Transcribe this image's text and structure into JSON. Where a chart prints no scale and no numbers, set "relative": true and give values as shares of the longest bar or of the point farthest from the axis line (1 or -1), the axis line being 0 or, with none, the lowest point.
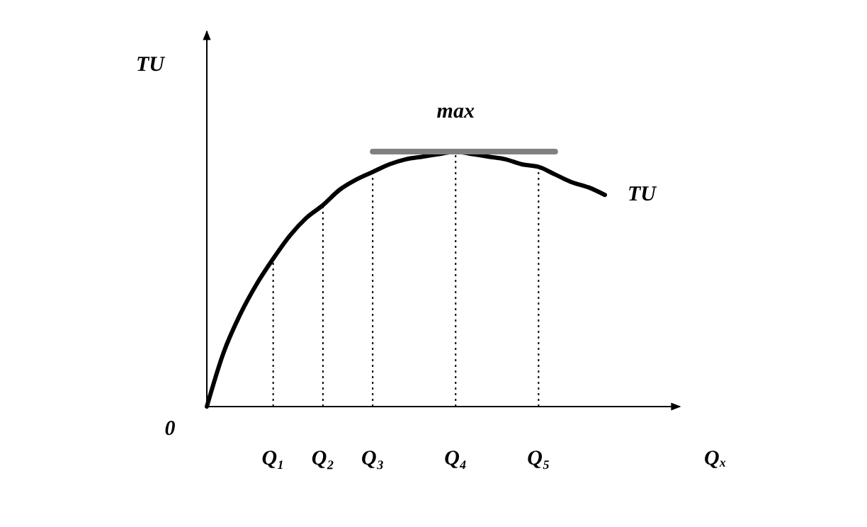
{
  "chart_data": {
    "type": "line",
    "relative": true,
    "ylabel": "TU",
    "xlabel": "Qₓ",
    "categories": [
      null,
      null,
      null,
      null,
      "Q₁",
      null,
      null,
      "Q₂",
      null,
      null,
      "Q₃",
      null,
      null,
      null,
      null,
      "Q₄",
      null,
      null,
      null,
      null,
      "Q₅",
      null,
      null,
      null,
      null
    ],
    "series": [
      {
        "name": "TU",
        "color": "#000000",
        "values": [
          0,
          0.21,
          0.36,
          0.48,
          0.58,
          0.67,
          0.74,
          0.79,
          0.85,
          0.89,
          0.92,
          0.95,
          0.97,
          0.98,
          0.99,
          1,
          0.99,
          0.98,
          0.97,
          0.95,
          0.94,
          0.91,
          0.88,
          0.86,
          0.83
        ]
      },
      {
        "color": "#808080",
        "values": [
          null,
          null,
          null,
          null,
          null,
          null,
          null,
          null,
          null,
          null,
          1,
          1,
          1,
          1,
          1,
          1,
          1,
          1,
          1,
          1,
          1,
          1,
          null,
          null,
          null
        ]
      }
    ],
    "ref_lines": [
      {
        "axis": "x",
        "value": "Q₁",
        "line_style": "dotted"
      },
      {
        "axis": "x",
        "value": "Q₂",
        "line_style": "dotted"
      },
      {
        "axis": "x",
        "value": "Q₃",
        "line_style": "dotted"
      },
      {
        "axis": "x",
        "value": "Q₄",
        "line_style": "dotted"
      },
      {
        "axis": "x",
        "value": "Q₅",
        "line_style": "dotted"
      }
    ],
    "annotations": [
      "0",
      {
        "text": "max",
        "x": "Q₄",
        "y": 1
      }
    ]
  }
}
